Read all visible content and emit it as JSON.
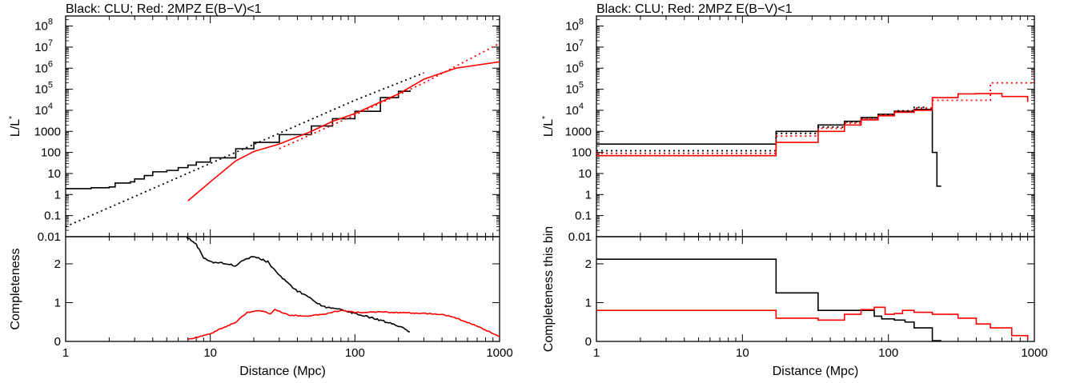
{
  "chart_data": [
    {
      "type": "line",
      "title": "Black: CLU; Red: 2MPZ E(B−V)<1",
      "xlabel": "Distance (Mpc)",
      "xscale": "log",
      "xlim": [
        1,
        1000
      ],
      "xticks": [
        "1",
        "10",
        "100",
        "1000"
      ],
      "panels": [
        {
          "id": "upper",
          "ylabel": "L/L*",
          "yscale": "log",
          "ylim": [
            0.01,
            300000000
          ],
          "yticks": [
            {
              "v": 0.1,
              "label": "0.1"
            },
            {
              "v": 1,
              "label": "1"
            },
            {
              "v": 10,
              "label": "10"
            },
            {
              "v": 100,
              "label": "100"
            },
            {
              "v": 1000,
              "label": "1000"
            },
            {
              "v": 10000,
              "base": "10",
              "exp": "4"
            },
            {
              "v": 100000,
              "base": "10",
              "exp": "5"
            },
            {
              "v": 1000000,
              "base": "10",
              "exp": "6"
            },
            {
              "v": 10000000,
              "base": "10",
              "exp": "7"
            },
            {
              "v": 100000000,
              "base": "10",
              "exp": "8"
            }
          ],
          "series": [
            {
              "color": "#000000",
              "style": "solid",
              "step": true,
              "points": [
                [
                  1,
                  1.9
                ],
                [
                  1.5,
                  2.1
                ],
                [
                  2,
                  2.3
                ],
                [
                  2.2,
                  3.5
                ],
                [
                  2.8,
                  4
                ],
                [
                  3,
                  5.5
                ],
                [
                  3.5,
                  8
                ],
                [
                  4,
                  12
                ],
                [
                  5,
                  14
                ],
                [
                  6,
                  19
                ],
                [
                  7,
                  25
                ],
                [
                  8,
                  35
                ],
                [
                  10,
                  55
                ],
                [
                  15,
                  150
                ],
                [
                  20,
                  300
                ],
                [
                  30,
                  700
                ],
                [
                  50,
                  1800
                ],
                [
                  70,
                  4000
                ],
                [
                  100,
                  9000
                ],
                [
                  150,
                  40000
                ],
                [
                  200,
                  80000
                ],
                [
                  240,
                  90000
                ]
              ]
            },
            {
              "color": "#000000",
              "style": "dotted",
              "points": [
                [
                  1,
                  0.03
                ],
                [
                  10,
                  30
                ],
                [
                  100,
                  30000
                ],
                [
                  300,
                  600000
                ]
              ]
            },
            {
              "color": "#ff0000",
              "style": "solid",
              "points": [
                [
                  7,
                  0.5
                ],
                [
                  10,
                  4
                ],
                [
                  15,
                  40
                ],
                [
                  20,
                  110
                ],
                [
                  30,
                  250
                ],
                [
                  50,
                  1000
                ],
                [
                  70,
                  3000
                ],
                [
                  100,
                  7000
                ],
                [
                  200,
                  60000
                ],
                [
                  300,
                  300000
                ],
                [
                  500,
                  1000000
                ],
                [
                  1000,
                  2000000
                ]
              ]
            },
            {
              "color": "#ff0000",
              "style": "dotted",
              "points": [
                [
                  30,
                  150
                ],
                [
                  100,
                  6000
                ],
                [
                  300,
                  200000
                ],
                [
                  1000,
                  15000000
                ]
              ]
            }
          ]
        },
        {
          "id": "lower",
          "ylabel": "Completeness",
          "yscale": "linear",
          "ylim": [
            0,
            2.7
          ],
          "yticks": [
            {
              "v": 0,
              "label": "0"
            },
            {
              "v": 1,
              "label": "1"
            },
            {
              "v": 2,
              "label": "2"
            }
          ],
          "series": [
            {
              "color": "#000000",
              "style": "solid",
              "noisy": true,
              "points": [
                [
                  6.8,
                  2.7
                ],
                [
                  8,
                  2.5
                ],
                [
                  9,
                  2.15
                ],
                [
                  10,
                  2.05
                ],
                [
                  12,
                  2.02
                ],
                [
                  15,
                  1.95
                ],
                [
                  17,
                  2.1
                ],
                [
                  20,
                  2.2
                ],
                [
                  25,
                  2.05
                ],
                [
                  30,
                  1.7
                ],
                [
                  40,
                  1.3
                ],
                [
                  50,
                  1.1
                ],
                [
                  60,
                  0.9
                ],
                [
                  80,
                  0.82
                ],
                [
                  100,
                  0.72
                ],
                [
                  150,
                  0.55
                ],
                [
                  200,
                  0.4
                ],
                [
                  240,
                  0.25
                ]
              ]
            },
            {
              "color": "#ff0000",
              "style": "solid",
              "noisy": true,
              "points": [
                [
                  7,
                  0.05
                ],
                [
                  10,
                  0.2
                ],
                [
                  15,
                  0.5
                ],
                [
                  18,
                  0.75
                ],
                [
                  22,
                  0.8
                ],
                [
                  26,
                  0.72
                ],
                [
                  28,
                  0.82
                ],
                [
                  35,
                  0.68
                ],
                [
                  45,
                  0.65
                ],
                [
                  60,
                  0.7
                ],
                [
                  80,
                  0.8
                ],
                [
                  100,
                  0.75
                ],
                [
                  150,
                  0.76
                ],
                [
                  200,
                  0.74
                ],
                [
                  300,
                  0.72
                ],
                [
                  400,
                  0.7
                ],
                [
                  500,
                  0.6
                ],
                [
                  700,
                  0.4
                ],
                [
                  1000,
                  0.12
                ]
              ]
            }
          ]
        }
      ]
    },
    {
      "type": "line",
      "title": "Black: CLU; Red: 2MPZ E(B−V)<1",
      "xlabel": "Distance (Mpc)",
      "xscale": "log",
      "xlim": [
        1,
        1000
      ],
      "xticks": [
        "1",
        "10",
        "100",
        "1000"
      ],
      "panels": [
        {
          "id": "upper",
          "ylabel": "L/L*",
          "yscale": "log",
          "ylim": [
            0.01,
            300000000
          ],
          "yticks": [
            {
              "v": 0.1,
              "label": "0.1"
            },
            {
              "v": 1,
              "label": "1"
            },
            {
              "v": 10,
              "label": "10"
            },
            {
              "v": 100,
              "label": "100"
            },
            {
              "v": 1000,
              "label": "1000"
            },
            {
              "v": 10000,
              "base": "10",
              "exp": "4"
            },
            {
              "v": 100000,
              "base": "10",
              "exp": "5"
            },
            {
              "v": 1000000,
              "base": "10",
              "exp": "6"
            },
            {
              "v": 10000000,
              "base": "10",
              "exp": "7"
            },
            {
              "v": 100000000,
              "base": "10",
              "exp": "8"
            }
          ],
          "series": [
            {
              "color": "#000000",
              "style": "solid",
              "step": true,
              "points": [
                [
                  1,
                  250
                ],
                [
                  17,
                  1000
                ],
                [
                  33,
                  2000
                ],
                [
                  50,
                  3000
                ],
                [
                  65,
                  4500
                ],
                [
                  85,
                  6500
                ],
                [
                  110,
                  9000
                ],
                [
                  150,
                  11000
                ],
                [
                  190,
                  11000
                ],
                [
                  200,
                  100
                ],
                [
                  215,
                  2.5
                ],
                [
                  230,
                  2.5
                ]
              ]
            },
            {
              "color": "#000000",
              "style": "dotted",
              "step": true,
              "points": [
                [
                  1,
                  120
                ],
                [
                  17,
                  800
                ],
                [
                  33,
                  1600
                ],
                [
                  50,
                  2800
                ],
                [
                  65,
                  4200
                ],
                [
                  85,
                  6000
                ],
                [
                  110,
                  9500
                ],
                [
                  150,
                  14000
                ],
                [
                  180,
                  14000
                ]
              ]
            },
            {
              "color": "#ff0000",
              "style": "solid",
              "step": true,
              "points": [
                [
                  1,
                  70
                ],
                [
                  17,
                  300
                ],
                [
                  33,
                  1000
                ],
                [
                  50,
                  2000
                ],
                [
                  65,
                  3500
                ],
                [
                  85,
                  5500
                ],
                [
                  110,
                  8000
                ],
                [
                  150,
                  10000
                ],
                [
                  200,
                  40000
                ],
                [
                  300,
                  60000
                ],
                [
                  400,
                  62000
                ],
                [
                  600,
                  45000
                ],
                [
                  900,
                  25000
                ]
              ]
            },
            {
              "color": "#ff0000",
              "style": "dotted",
              "step": true,
              "points": [
                [
                  1,
                  90
                ],
                [
                  17,
                  600
                ],
                [
                  33,
                  1400
                ],
                [
                  50,
                  2500
                ],
                [
                  65,
                  4000
                ],
                [
                  85,
                  6000
                ],
                [
                  110,
                  9000
                ],
                [
                  150,
                  13000
                ],
                [
                  200,
                  30000
                ],
                [
                  500,
                  200000
                ],
                [
                  1000,
                  900000
                ]
              ]
            }
          ]
        },
        {
          "id": "lower",
          "ylabel": "Completeness this bin",
          "yscale": "linear",
          "ylim": [
            0,
            2.7
          ],
          "yticks": [
            {
              "v": 0,
              "label": "0"
            },
            {
              "v": 1,
              "label": "1"
            },
            {
              "v": 2,
              "label": "2"
            }
          ],
          "series": [
            {
              "color": "#000000",
              "style": "solid",
              "step": true,
              "points": [
                [
                  1,
                  2.12
                ],
                [
                  17,
                  1.25
                ],
                [
                  33,
                  0.8
                ],
                [
                  80,
                  0.65
                ],
                [
                  90,
                  0.58
                ],
                [
                  110,
                  0.55
                ],
                [
                  130,
                  0.5
                ],
                [
                  150,
                  0.35
                ],
                [
                  200,
                  0.02
                ],
                [
                  230,
                  0.02
                ]
              ]
            },
            {
              "color": "#ff0000",
              "style": "solid",
              "step": true,
              "points": [
                [
                  1,
                  0.8
                ],
                [
                  17,
                  0.6
                ],
                [
                  33,
                  0.55
                ],
                [
                  50,
                  0.7
                ],
                [
                  65,
                  0.82
                ],
                [
                  80,
                  0.88
                ],
                [
                  95,
                  0.7
                ],
                [
                  110,
                  0.72
                ],
                [
                  125,
                  0.8
                ],
                [
                  150,
                  0.75
                ],
                [
                  200,
                  0.7
                ],
                [
                  300,
                  0.6
                ],
                [
                  400,
                  0.45
                ],
                [
                  500,
                  0.35
                ],
                [
                  700,
                  0.15
                ],
                [
                  900,
                  0.04
                ]
              ]
            }
          ]
        }
      ]
    }
  ]
}
